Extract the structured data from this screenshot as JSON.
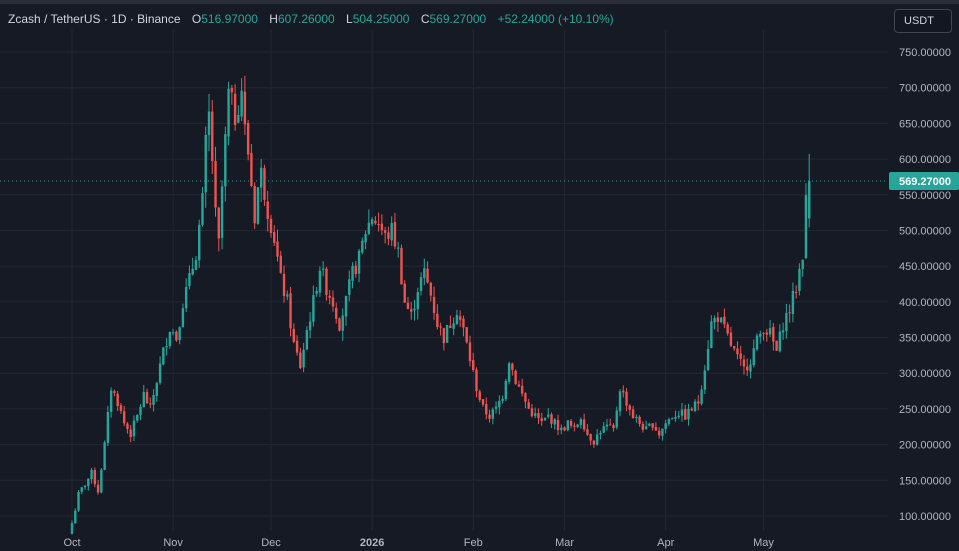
{
  "legend": {
    "symbol": "Zcash / TetherUS · 1D · Binance",
    "open_label": "O",
    "open": "516.97000",
    "high_label": "H",
    "high": "607.26000",
    "low_label": "L",
    "low": "504.25000",
    "close_label": "C",
    "close": "569.27000",
    "change": "+52.24000 (+10.10%)"
  },
  "currency_button": "USDT",
  "colors": {
    "up": "#26a69a",
    "down": "#ef5350",
    "background": "#161a25",
    "grid": "#232733"
  },
  "chart_data": {
    "type": "candlestick",
    "ylim": [
      80,
      765
    ],
    "y_ticks": [
      100,
      150,
      200,
      250,
      300,
      350,
      400,
      450,
      500,
      550,
      600,
      650,
      700,
      750
    ],
    "y_tick_labels": [
      "100.00000",
      "150.00000",
      "200.00000",
      "250.00000",
      "300.00000",
      "350.00000",
      "400.00000",
      "450.00000",
      "500.00000",
      "550.00000",
      "600.00000",
      "650.00000",
      "700.00000",
      "750.00000"
    ],
    "x_ticks": [
      {
        "label": "Oct",
        "day": 0
      },
      {
        "label": "Nov",
        "day": 31
      },
      {
        "label": "Dec",
        "day": 61
      },
      {
        "label": "2026",
        "day": 92
      },
      {
        "label": "Feb",
        "day": 123
      },
      {
        "label": "Mar",
        "day": 151
      },
      {
        "label": "Apr",
        "day": 182
      },
      {
        "label": "May",
        "day": 212
      }
    ],
    "last_price": 569.27,
    "last_price_label": "569.27000",
    "close_series": [
      [
        0,
        90
      ],
      [
        2,
        130
      ],
      [
        4,
        145
      ],
      [
        6,
        160
      ],
      [
        8,
        135
      ],
      [
        10,
        200
      ],
      [
        12,
        280
      ],
      [
        14,
        260
      ],
      [
        16,
        230
      ],
      [
        18,
        215
      ],
      [
        20,
        240
      ],
      [
        22,
        270
      ],
      [
        24,
        250
      ],
      [
        26,
        290
      ],
      [
        28,
        330
      ],
      [
        30,
        365
      ],
      [
        32,
        350
      ],
      [
        34,
        400
      ],
      [
        36,
        430
      ],
      [
        38,
        470
      ],
      [
        40,
        540
      ],
      [
        41,
        620
      ],
      [
        42,
        660
      ],
      [
        43,
        600
      ],
      [
        44,
        520
      ],
      [
        45,
        480
      ],
      [
        46,
        560
      ],
      [
        48,
        690
      ],
      [
        50,
        660
      ],
      [
        52,
        700
      ],
      [
        53,
        640
      ],
      [
        54,
        610
      ],
      [
        56,
        520
      ],
      [
        57,
        560
      ],
      [
        58,
        580
      ],
      [
        60,
        530
      ],
      [
        62,
        490
      ],
      [
        64,
        430
      ],
      [
        66,
        400
      ],
      [
        68,
        340
      ],
      [
        70,
        310
      ],
      [
        72,
        360
      ],
      [
        74,
        400
      ],
      [
        76,
        450
      ],
      [
        78,
        420
      ],
      [
        80,
        400
      ],
      [
        82,
        370
      ],
      [
        84,
        400
      ],
      [
        86,
        440
      ],
      [
        88,
        460
      ],
      [
        90,
        500
      ],
      [
        92,
        520
      ],
      [
        94,
        510
      ],
      [
        96,
        490
      ],
      [
        98,
        500
      ],
      [
        100,
        470
      ],
      [
        102,
        400
      ],
      [
        104,
        380
      ],
      [
        106,
        420
      ],
      [
        108,
        440
      ],
      [
        110,
        410
      ],
      [
        112,
        370
      ],
      [
        114,
        350
      ],
      [
        116,
        370
      ],
      [
        118,
        390
      ],
      [
        120,
        360
      ],
      [
        122,
        320
      ],
      [
        124,
        280
      ],
      [
        126,
        250
      ],
      [
        128,
        240
      ],
      [
        130,
        250
      ],
      [
        132,
        270
      ],
      [
        134,
        320
      ],
      [
        136,
        290
      ],
      [
        138,
        270
      ],
      [
        140,
        250
      ],
      [
        142,
        240
      ],
      [
        144,
        230
      ],
      [
        146,
        240
      ],
      [
        148,
        230
      ],
      [
        150,
        220
      ],
      [
        152,
        230
      ],
      [
        154,
        220
      ],
      [
        156,
        240
      ],
      [
        158,
        215
      ],
      [
        160,
        205
      ],
      [
        162,
        220
      ],
      [
        164,
        225
      ],
      [
        166,
        220
      ],
      [
        168,
        280
      ],
      [
        170,
        260
      ],
      [
        172,
        240
      ],
      [
        174,
        230
      ],
      [
        176,
        220
      ],
      [
        178,
        230
      ],
      [
        180,
        215
      ],
      [
        182,
        230
      ],
      [
        184,
        240
      ],
      [
        186,
        245
      ],
      [
        188,
        240
      ],
      [
        190,
        250
      ],
      [
        192,
        260
      ],
      [
        194,
        310
      ],
      [
        196,
        370
      ],
      [
        198,
        380
      ],
      [
        200,
        360
      ],
      [
        202,
        340
      ],
      [
        204,
        320
      ],
      [
        206,
        305
      ],
      [
        208,
        320
      ],
      [
        210,
        345
      ],
      [
        212,
        365
      ],
      [
        214,
        355
      ],
      [
        216,
        330
      ],
      [
        218,
        370
      ],
      [
        220,
        390
      ],
      [
        222,
        420
      ],
      [
        224,
        470
      ],
      [
        225,
        540
      ],
      [
        226,
        569.27
      ]
    ]
  }
}
